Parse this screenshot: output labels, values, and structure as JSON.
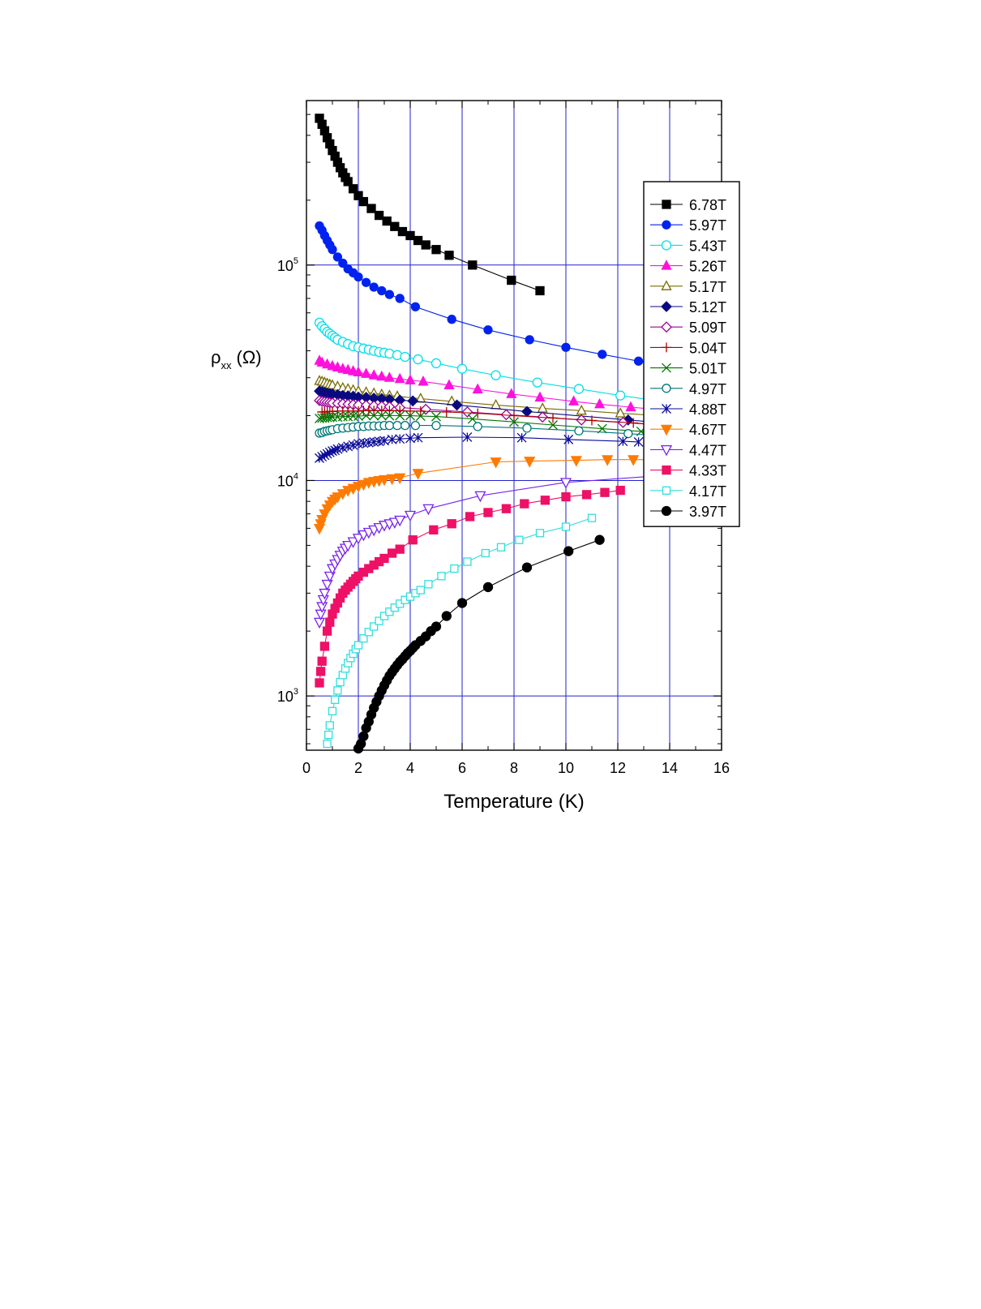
{
  "chart_data": {
    "type": "scatter",
    "title": "",
    "xlabel": "Temperature (K)",
    "ylabel_main": "ρ",
    "ylabel_sub": "xx",
    "ylabel_unit": "(Ω)",
    "xlim": [
      0,
      16
    ],
    "ylim": [
      560,
      580000
    ],
    "yscale": "log",
    "grid": true,
    "grid_color": "#2222cc",
    "legend_position": "right",
    "x_ticks": [
      0,
      2,
      4,
      6,
      8,
      10,
      12,
      14,
      16
    ],
    "y_ticks": [
      {
        "value": 1000,
        "base": "10",
        "exp": "3"
      },
      {
        "value": 10000,
        "base": "10",
        "exp": "4"
      },
      {
        "value": 100000,
        "base": "10",
        "exp": "5"
      }
    ],
    "series": [
      {
        "name": "6.78T",
        "color": "#000000",
        "marker": "square",
        "filled": true,
        "msize": 10,
        "x": [
          0.5,
          0.6,
          0.7,
          0.8,
          0.9,
          1.0,
          1.1,
          1.2,
          1.3,
          1.4,
          1.5,
          1.6,
          1.8,
          2.0,
          2.2,
          2.5,
          2.8,
          3.1,
          3.4,
          3.7,
          4.0,
          4.3,
          4.6,
          5.0,
          5.5,
          6.4,
          7.9,
          9.0
        ],
        "y": [
          480000,
          450000,
          420000,
          390000,
          365000,
          340000,
          320000,
          300000,
          283000,
          268000,
          255000,
          244000,
          226000,
          210000,
          197000,
          183000,
          170000,
          160000,
          151000,
          143000,
          137000,
          130000,
          124000,
          118000,
          111000,
          100000,
          85000,
          76000
        ]
      },
      {
        "name": "5.97T",
        "color": "#0022ee",
        "marker": "circle",
        "filled": true,
        "msize": 10,
        "x": [
          0.5,
          0.6,
          0.7,
          0.8,
          0.9,
          1.0,
          1.2,
          1.4,
          1.6,
          1.8,
          2.0,
          2.3,
          2.6,
          2.9,
          3.2,
          3.6,
          4.2,
          5.6,
          7.0,
          8.6,
          10.0,
          11.4,
          12.8,
          14.2
        ],
        "y": [
          152000,
          145000,
          137000,
          130000,
          124000,
          118000,
          109000,
          102000,
          96000,
          92000,
          88000,
          83000,
          79000,
          76000,
          73000,
          70000,
          64000,
          56000,
          50000,
          45000,
          41500,
          38500,
          35800,
          33500
        ]
      },
      {
        "name": "5.43T",
        "color": "#00e0e8",
        "marker": "circle",
        "filled": false,
        "msize": 11,
        "x": [
          0.5,
          0.6,
          0.7,
          0.8,
          0.9,
          1.0,
          1.1,
          1.2,
          1.4,
          1.6,
          1.8,
          2.0,
          2.2,
          2.4,
          2.6,
          2.8,
          3.0,
          3.2,
          3.5,
          3.8,
          4.3,
          5.0,
          6.0,
          7.3,
          8.9,
          10.5,
          12.1,
          13.5
        ],
        "y": [
          54000,
          52000,
          50500,
          49000,
          48000,
          47000,
          46000,
          45000,
          44000,
          43000,
          42000,
          41500,
          41000,
          40500,
          40000,
          39500,
          39200,
          38800,
          38200,
          37500,
          36500,
          35000,
          33000,
          30800,
          28500,
          26600,
          24800,
          23500
        ]
      },
      {
        "name": "5.26T",
        "color": "#ff11dd",
        "marker": "triangle-up",
        "filled": true,
        "msize": 11,
        "x": [
          0.5,
          0.6,
          0.8,
          1.0,
          1.2,
          1.4,
          1.6,
          1.8,
          2.0,
          2.3,
          2.6,
          2.9,
          3.2,
          3.6,
          4.0,
          4.5,
          5.5,
          6.6,
          7.9,
          9.0,
          10.3,
          11.3,
          12.5,
          13.6
        ],
        "y": [
          36000,
          35300,
          34600,
          34000,
          33500,
          33000,
          32600,
          32200,
          31800,
          31300,
          30800,
          30400,
          30000,
          29600,
          29200,
          28800,
          27700,
          26500,
          25200,
          24300,
          23300,
          22600,
          21900,
          21300
        ]
      },
      {
        "name": "5.17T",
        "color": "#7a6b00",
        "marker": "triangle-up",
        "filled": false,
        "msize": 11,
        "x": [
          0.5,
          0.6,
          0.7,
          0.8,
          0.9,
          1.0,
          1.2,
          1.4,
          1.6,
          1.8,
          2.0,
          2.3,
          2.6,
          2.9,
          3.2,
          3.5,
          4.4,
          5.6,
          7.3,
          9.1,
          10.6,
          12.1,
          13.6
        ],
        "y": [
          29000,
          28800,
          28500,
          28200,
          27900,
          27700,
          27300,
          26900,
          26600,
          26300,
          26000,
          25700,
          25400,
          25100,
          24800,
          24600,
          24000,
          23300,
          22400,
          21600,
          21100,
          20500,
          20000
        ]
      },
      {
        "name": "5.12T",
        "color": "#0a0a80",
        "marker": "diamond",
        "filled": true,
        "msize": 12,
        "x": [
          0.5,
          0.6,
          0.7,
          0.8,
          0.9,
          1.0,
          1.2,
          1.4,
          1.6,
          1.8,
          2.0,
          2.3,
          2.6,
          2.9,
          3.2,
          3.6,
          4.1,
          5.8,
          8.5,
          12.4,
          13.8
        ],
        "y": [
          26000,
          25800,
          25600,
          25400,
          25300,
          25200,
          25000,
          24800,
          24700,
          24600,
          24400,
          24300,
          24100,
          24000,
          23800,
          23600,
          23400,
          22400,
          20900,
          19100,
          18500
        ]
      },
      {
        "name": "5.09T",
        "color": "#990099",
        "marker": "diamond",
        "filled": false,
        "msize": 12,
        "x": [
          0.5,
          0.6,
          0.7,
          0.8,
          0.9,
          1.0,
          1.2,
          1.4,
          1.6,
          1.8,
          2.0,
          2.3,
          2.6,
          2.9,
          3.2,
          3.6,
          4.6,
          6.2,
          7.7,
          9.1,
          10.6,
          12.2,
          13.6
        ],
        "y": [
          23500,
          23300,
          23200,
          23100,
          23000,
          22900,
          22800,
          22700,
          22600,
          22500,
          22400,
          22300,
          22200,
          22100,
          22000,
          21800,
          21400,
          20800,
          20200,
          19700,
          19100,
          18600,
          18100
        ]
      },
      {
        "name": "5.04T",
        "color": "#aa0000",
        "marker": "plus",
        "filled": false,
        "msize": 12,
        "x": [
          0.6,
          0.7,
          0.8,
          0.9,
          1.0,
          1.2,
          1.4,
          1.6,
          1.8,
          2.0,
          2.2,
          2.4,
          2.6,
          2.9,
          3.2,
          3.6,
          4.0,
          4.4,
          5.4,
          6.6,
          8.0,
          9.5,
          11.0,
          12.6,
          13.8
        ],
        "y": [
          20800,
          20800,
          20900,
          20900,
          20900,
          21000,
          21000,
          21000,
          21000,
          21000,
          21100,
          21100,
          21100,
          21100,
          21100,
          21100,
          21000,
          21000,
          20800,
          20500,
          20000,
          19500,
          19000,
          18500,
          18100
        ]
      },
      {
        "name": "5.01T",
        "color": "#007700",
        "marker": "x",
        "filled": false,
        "msize": 11,
        "x": [
          0.5,
          0.6,
          0.7,
          0.8,
          0.9,
          1.0,
          1.2,
          1.4,
          1.6,
          1.8,
          2.0,
          2.3,
          2.6,
          2.9,
          3.2,
          3.6,
          4.0,
          4.4,
          5.0,
          6.4,
          8.0,
          9.5,
          11.4,
          12.9,
          13.8
        ],
        "y": [
          19400,
          19500,
          19500,
          19600,
          19600,
          19700,
          19700,
          19800,
          19800,
          19900,
          19900,
          20000,
          20000,
          20000,
          20000,
          20000,
          20000,
          19900,
          19800,
          19300,
          18700,
          18100,
          17400,
          16900,
          16600
        ]
      },
      {
        "name": "4.97T",
        "color": "#007777",
        "marker": "circle",
        "filled": false,
        "msize": 10,
        "x": [
          0.5,
          0.6,
          0.7,
          0.8,
          0.9,
          1.0,
          1.2,
          1.4,
          1.6,
          1.8,
          2.0,
          2.2,
          2.4,
          2.6,
          2.8,
          3.0,
          3.2,
          3.5,
          3.8,
          4.2,
          5.0,
          6.6,
          8.5,
          10.5,
          12.4,
          13.8
        ],
        "y": [
          16600,
          16700,
          16900,
          17000,
          17100,
          17200,
          17400,
          17500,
          17600,
          17700,
          17800,
          17800,
          17900,
          17900,
          17900,
          18000,
          18000,
          18000,
          18000,
          18000,
          18000,
          17800,
          17500,
          17000,
          16500,
          16100
        ]
      },
      {
        "name": "4.88T",
        "color": "#0a0a99",
        "marker": "asterisk",
        "filled": false,
        "msize": 11,
        "x": [
          0.5,
          0.6,
          0.7,
          0.8,
          0.9,
          1.0,
          1.1,
          1.2,
          1.4,
          1.6,
          1.8,
          2.0,
          2.2,
          2.4,
          2.6,
          2.8,
          3.0,
          3.3,
          3.6,
          4.0,
          4.3,
          6.2,
          8.3,
          10.1,
          12.2,
          12.8
        ],
        "y": [
          12700,
          12900,
          13100,
          13300,
          13500,
          13700,
          13800,
          14000,
          14200,
          14400,
          14600,
          14800,
          14900,
          15000,
          15100,
          15200,
          15300,
          15500,
          15600,
          15700,
          15800,
          15900,
          15800,
          15500,
          15200,
          15100
        ]
      },
      {
        "name": "4.67T",
        "color": "#ff7a00",
        "marker": "triangle-down",
        "filled": true,
        "msize": 12,
        "x": [
          0.5,
          0.55,
          0.6,
          0.7,
          0.8,
          0.9,
          1.0,
          1.1,
          1.2,
          1.4,
          1.6,
          1.8,
          2.0,
          2.2,
          2.4,
          2.6,
          2.8,
          3.0,
          3.3,
          3.6,
          4.3,
          7.3,
          8.6,
          10.4,
          11.6,
          12.6,
          13.6
        ],
        "y": [
          6000,
          6300,
          6600,
          7000,
          7400,
          7700,
          8000,
          8200,
          8400,
          8700,
          9000,
          9200,
          9400,
          9600,
          9800,
          9900,
          10000,
          10100,
          10200,
          10300,
          10800,
          12200,
          12300,
          12400,
          12500,
          12500,
          12500
        ]
      },
      {
        "name": "4.47T",
        "color": "#7722ee",
        "marker": "triangle-down",
        "filled": false,
        "msize": 12,
        "x": [
          0.5,
          0.55,
          0.6,
          0.65,
          0.7,
          0.8,
          0.9,
          1.0,
          1.1,
          1.2,
          1.3,
          1.4,
          1.5,
          1.6,
          1.8,
          2.0,
          2.2,
          2.4,
          2.6,
          2.8,
          3.0,
          3.2,
          3.4,
          3.6,
          4.0,
          4.7,
          6.7,
          10.0,
          13.5
        ],
        "y": [
          2200,
          2400,
          2600,
          2800,
          3000,
          3300,
          3600,
          3900,
          4100,
          4300,
          4500,
          4700,
          4850,
          5000,
          5200,
          5400,
          5600,
          5750,
          5900,
          6050,
          6200,
          6300,
          6400,
          6550,
          6900,
          7400,
          8500,
          9800,
          10500
        ]
      },
      {
        "name": "4.33T",
        "color": "#ee1166",
        "marker": "square",
        "filled": true,
        "msize": 10,
        "x": [
          0.5,
          0.55,
          0.6,
          0.7,
          0.8,
          0.9,
          1.0,
          1.1,
          1.2,
          1.3,
          1.4,
          1.5,
          1.6,
          1.7,
          1.8,
          1.9,
          2.0,
          2.2,
          2.4,
          2.6,
          2.8,
          3.0,
          3.3,
          3.6,
          4.1,
          4.9,
          5.6,
          6.3,
          7.0,
          7.7,
          8.4,
          9.2,
          10.0,
          10.8,
          11.5,
          12.1
        ],
        "y": [
          1150,
          1300,
          1450,
          1700,
          2000,
          2200,
          2400,
          2550,
          2700,
          2850,
          3000,
          3100,
          3200,
          3300,
          3400,
          3500,
          3600,
          3750,
          3900,
          4050,
          4200,
          4350,
          4600,
          4800,
          5300,
          5900,
          6300,
          6800,
          7100,
          7400,
          7800,
          8100,
          8400,
          8600,
          8800,
          9000
        ]
      },
      {
        "name": "4.17T",
        "color": "#33dddd",
        "marker": "square",
        "filled": false,
        "msize": 9,
        "x": [
          0.8,
          0.85,
          0.9,
          1.0,
          1.1,
          1.2,
          1.3,
          1.4,
          1.5,
          1.6,
          1.7,
          1.8,
          1.9,
          2.0,
          2.2,
          2.4,
          2.6,
          2.8,
          3.0,
          3.2,
          3.4,
          3.6,
          3.8,
          4.0,
          4.2,
          4.4,
          4.7,
          5.2,
          5.7,
          6.2,
          6.9,
          7.5,
          8.2,
          9.0,
          10.0,
          11.0
        ],
        "y": [
          600,
          660,
          730,
          850,
          960,
          1060,
          1160,
          1250,
          1340,
          1420,
          1500,
          1570,
          1650,
          1720,
          1850,
          1980,
          2100,
          2230,
          2350,
          2460,
          2570,
          2680,
          2790,
          2890,
          3000,
          3100,
          3300,
          3600,
          3900,
          4200,
          4600,
          4900,
          5300,
          5700,
          6100,
          6700
        ]
      },
      {
        "name": "3.97T",
        "color": "#000000",
        "marker": "circle",
        "filled": true,
        "msize": 11,
        "x": [
          2.0,
          2.1,
          2.2,
          2.3,
          2.4,
          2.5,
          2.6,
          2.7,
          2.8,
          2.9,
          3.0,
          3.1,
          3.2,
          3.3,
          3.4,
          3.5,
          3.6,
          3.7,
          3.8,
          3.9,
          4.0,
          4.1,
          4.2,
          4.4,
          4.6,
          4.8,
          5.0,
          5.4,
          6.0,
          7.0,
          8.5,
          10.1,
          11.3
        ],
        "y": [
          570,
          600,
          650,
          710,
          760,
          820,
          880,
          940,
          1000,
          1060,
          1120,
          1180,
          1240,
          1290,
          1340,
          1390,
          1440,
          1480,
          1530,
          1580,
          1620,
          1670,
          1720,
          1800,
          1890,
          2000,
          2100,
          2350,
          2700,
          3200,
          3950,
          4700,
          5300
        ]
      }
    ]
  }
}
